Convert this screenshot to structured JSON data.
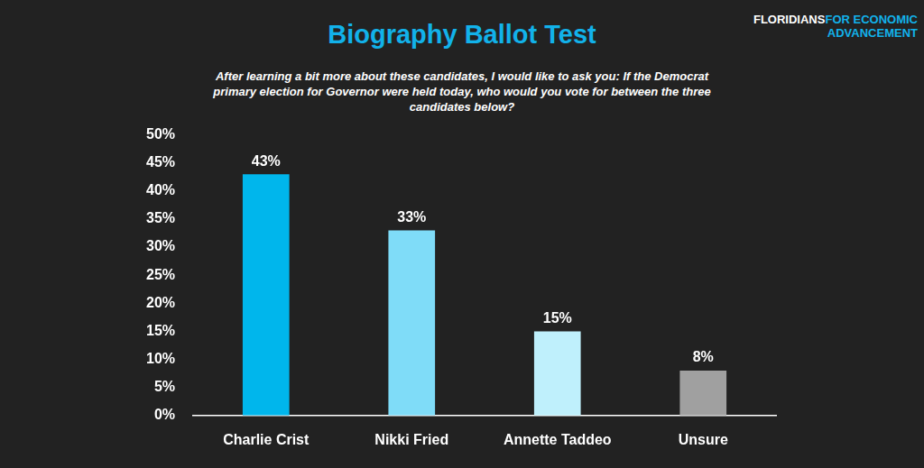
{
  "chart_data": {
    "type": "bar",
    "title": "Biography Ballot Test",
    "subtitle": "After learning a bit more about these candidates, I would like to ask you: If the Democrat primary election for Governor were held today, who would you vote for between the three candidates below?",
    "annotations": [
      "FLORIDIANS",
      "FOR ECONOMIC",
      "ADVANCEMENT"
    ],
    "categories": [
      "Charlie Crist",
      "Nikki Fried",
      "Annette Taddeo",
      "Unsure"
    ],
    "values": [
      43,
      33,
      15,
      8
    ],
    "value_labels": [
      "43%",
      "33%",
      "15%",
      "8%"
    ],
    "colors": [
      "#00b6ec",
      "#7fdcf8",
      "#bff0fc",
      "#a0a0a0"
    ],
    "ylim": [
      0,
      50
    ],
    "yticks": [
      {
        "value": 0,
        "label": "0%"
      },
      {
        "value": 5,
        "label": "5%"
      },
      {
        "value": 10,
        "label": "10%"
      },
      {
        "value": 15,
        "label": "15%"
      },
      {
        "value": 20,
        "label": "20%"
      },
      {
        "value": 25,
        "label": "25%"
      },
      {
        "value": 30,
        "label": "30%"
      },
      {
        "value": 35,
        "label": "35%"
      },
      {
        "value": 40,
        "label": "40%"
      },
      {
        "value": 45,
        "label": "45%"
      },
      {
        "value": 50,
        "label": "50%"
      }
    ],
    "grid": false,
    "data_labels": true
  }
}
